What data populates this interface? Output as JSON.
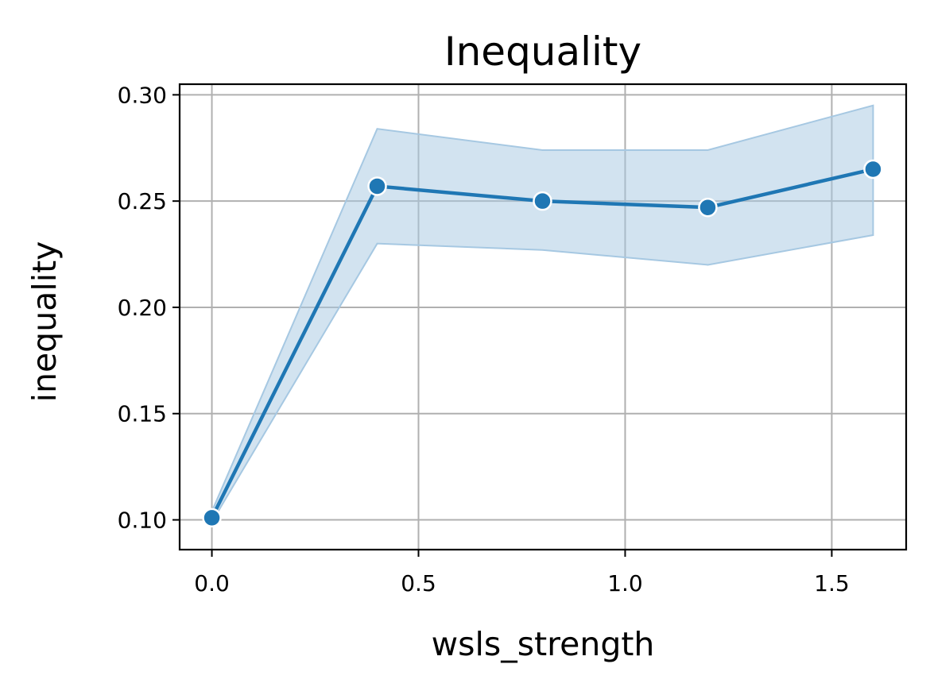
{
  "chart_data": {
    "type": "line",
    "title": "Inequality",
    "xlabel": "wsls_strength",
    "ylabel": "inequality",
    "x": [
      0.0,
      0.4,
      0.8,
      1.2,
      1.6
    ],
    "series": [
      {
        "values": [
          0.101,
          0.257,
          0.25,
          0.247,
          0.265
        ],
        "ci_lower": [
          0.099,
          0.23,
          0.227,
          0.22,
          0.234
        ],
        "ci_upper": [
          0.104,
          0.284,
          0.274,
          0.274,
          0.295
        ],
        "color": "#1f77b4",
        "band_color": "#a6c8e2"
      }
    ],
    "xlim": [
      -0.078,
      1.68
    ],
    "ylim": [
      0.086,
      0.305
    ],
    "xticks": [
      0.0,
      0.5,
      1.0,
      1.5
    ],
    "xtick_labels": [
      "0.0",
      "0.5",
      "1.0",
      "1.5"
    ],
    "yticks": [
      0.1,
      0.15,
      0.2,
      0.25,
      0.3
    ],
    "ytick_labels": [
      "0.10",
      "0.15",
      "0.20",
      "0.25",
      "0.30"
    ],
    "grid": true,
    "marker": "circle"
  }
}
